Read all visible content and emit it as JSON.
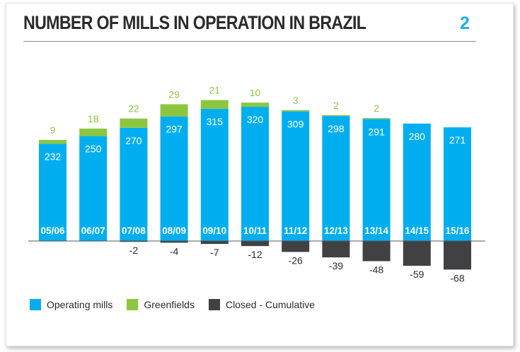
{
  "header": {
    "title": "NUMBER OF MILLS IN OPERATION IN BRAZIL",
    "figure_number": "2"
  },
  "colors": {
    "operating": "#00aeef",
    "greenfield": "#8cc63f",
    "closed": "#414042",
    "title": "#2b2b2b",
    "accent": "#1ab0e8"
  },
  "chart_data": {
    "type": "bar",
    "stacked": true,
    "categories": [
      "05/06",
      "06/07",
      "07/08",
      "08/09",
      "09/10",
      "10/11",
      "11/12",
      "12/13",
      "13/14",
      "14/15",
      "15/16"
    ],
    "series": [
      {
        "name": "Operating mills",
        "values": [
          232,
          250,
          270,
          297,
          315,
          320,
          309,
          298,
          291,
          280,
          271
        ]
      },
      {
        "name": "Greenfields",
        "values": [
          9,
          18,
          22,
          29,
          21,
          10,
          3,
          2,
          2,
          null,
          null
        ]
      },
      {
        "name": "Closed - Cumulative",
        "values": [
          null,
          null,
          -2,
          -4,
          -7,
          -12,
          -26,
          -39,
          -48,
          -59,
          -68
        ]
      }
    ],
    "ylim": [
      -68,
      330
    ],
    "grid": false,
    "legend_position": "bottom-left"
  },
  "legend": {
    "items": [
      {
        "label": "Operating mills"
      },
      {
        "label": "Greenfields"
      },
      {
        "label": "Closed - Cumulative"
      }
    ]
  }
}
